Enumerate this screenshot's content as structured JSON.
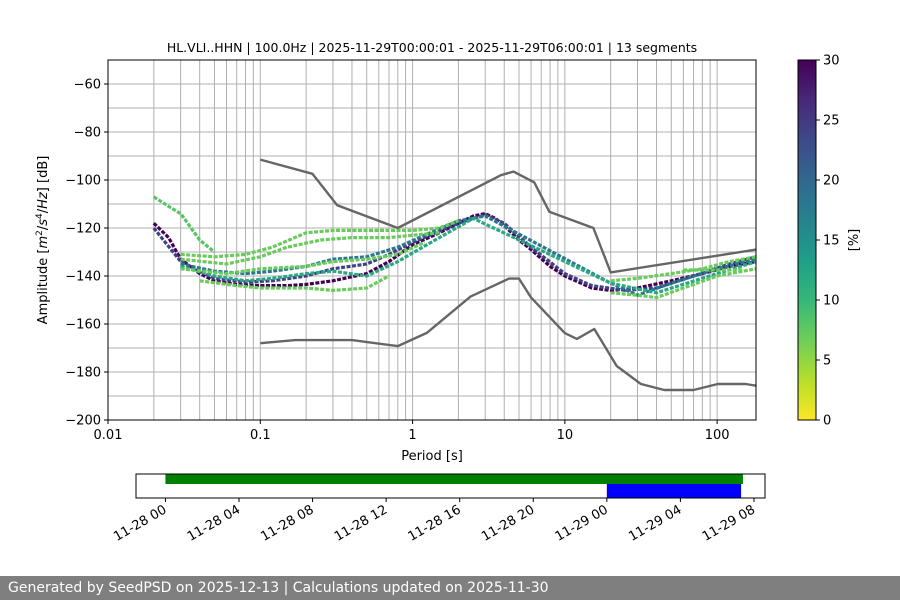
{
  "chart_data": [
    {
      "type": "heatmap",
      "title": "HL.VLI..HHN | 100.0Hz | 2025-11-29T00:00:01 - 2025-11-29T06:00:01 | 13 segments",
      "xlabel": "Period [s]",
      "ylabel_parts": [
        "Amplitude [",
        "m",
        "2",
        "/",
        "s",
        "4",
        "/",
        "Hz",
        "] [dB]"
      ],
      "xscale": "log",
      "xlim": [
        0.01,
        180
      ],
      "ylim": [
        -200,
        -50
      ],
      "xticks": [
        0.01,
        0.1,
        1,
        10,
        100
      ],
      "xtick_labels": [
        "0.01",
        "0.1",
        "1",
        "10",
        "100"
      ],
      "yticks": [
        -200,
        -180,
        -160,
        -140,
        -120,
        -100,
        -80,
        -60
      ],
      "ytick_labels": [
        "−200",
        "−180",
        "−160",
        "−140",
        "−120",
        "−100",
        "−80",
        "−60"
      ],
      "grid": true,
      "colorbar": {
        "label": "[%]",
        "range": [
          0,
          30
        ],
        "ticks": [
          0,
          5,
          10,
          15,
          20,
          25,
          30
        ],
        "tick_labels": [
          "0",
          "5",
          "10",
          "15",
          "20",
          "25",
          "30"
        ],
        "colormap": "viridis_r",
        "colors": [
          "#fde725",
          "#b5de2b",
          "#6ece58",
          "#35b779",
          "#1f9e89",
          "#26828e",
          "#31688e",
          "#3e4989",
          "#482878",
          "#440154"
        ]
      },
      "noise_model_color": "#666666",
      "high_noise_model": [
        [
          0.1,
          -91.5
        ],
        [
          0.22,
          -97.4
        ],
        [
          0.32,
          -110.5
        ],
        [
          0.8,
          -120
        ],
        [
          3.8,
          -98
        ],
        [
          4.6,
          -96.5
        ],
        [
          6.3,
          -101
        ],
        [
          7.9,
          -113.2
        ],
        [
          15.4,
          -120
        ],
        [
          20,
          -138.5
        ],
        [
          180,
          -129
        ]
      ],
      "low_noise_model": [
        [
          0.1,
          -168
        ],
        [
          0.17,
          -166.7
        ],
        [
          0.4,
          -166.7
        ],
        [
          0.8,
          -169.2
        ],
        [
          1.24,
          -163.7
        ],
        [
          2.4,
          -148.6
        ],
        [
          4.3,
          -141.1
        ],
        [
          5.0,
          -141.1
        ],
        [
          6.0,
          -149
        ],
        [
          10,
          -163.8
        ],
        [
          12,
          -166.2
        ],
        [
          15.6,
          -162.1
        ],
        [
          21.9,
          -177.5
        ],
        [
          31.6,
          -185
        ],
        [
          45,
          -187.5
        ],
        [
          70,
          -187.5
        ],
        [
          101,
          -185
        ],
        [
          154,
          -185
        ],
        [
          180,
          -185.7
        ]
      ],
      "psd_curves": [
        {
          "level": 30,
          "points": [
            [
              0.02,
              -118
            ],
            [
              0.025,
              -124
            ],
            [
              0.03,
              -133
            ],
            [
              0.04,
              -139
            ],
            [
              0.05,
              -142
            ],
            [
              0.07,
              -143.5
            ],
            [
              0.1,
              -144
            ],
            [
              0.15,
              -144
            ],
            [
              0.2,
              -143.5
            ],
            [
              0.3,
              -142
            ],
            [
              0.5,
              -139
            ],
            [
              0.7,
              -134
            ],
            [
              1,
              -127
            ],
            [
              1.5,
              -122
            ],
            [
              2,
              -118
            ],
            [
              2.5,
              -115
            ],
            [
              3,
              -114
            ],
            [
              3.5,
              -116
            ],
            [
              4,
              -119
            ],
            [
              5,
              -125
            ],
            [
              6,
              -129
            ],
            [
              8,
              -136
            ],
            [
              10,
              -140
            ],
            [
              15,
              -145
            ],
            [
              20,
              -146
            ],
            [
              30,
              -145
            ],
            [
              50,
              -142
            ],
            [
              80,
              -139
            ],
            [
              120,
              -136
            ],
            [
              180,
              -134
            ]
          ]
        },
        {
          "level": 24,
          "points": [
            [
              0.02,
              -120
            ],
            [
              0.03,
              -134
            ],
            [
              0.05,
              -141
            ],
            [
              0.08,
              -142.5
            ],
            [
              0.12,
              -142
            ],
            [
              0.2,
              -140
            ],
            [
              0.3,
              -137
            ],
            [
              0.5,
              -135
            ],
            [
              0.7,
              -131
            ],
            [
              1,
              -126
            ],
            [
              2,
              -118
            ],
            [
              3,
              -114.5
            ],
            [
              4,
              -118
            ],
            [
              6,
              -128
            ],
            [
              10,
              -139
            ],
            [
              15,
              -144
            ],
            [
              25,
              -146
            ],
            [
              40,
              -145
            ],
            [
              70,
              -140
            ],
            [
              120,
              -135
            ],
            [
              180,
              -132
            ]
          ]
        },
        {
          "level": 18,
          "points": [
            [
              0.03,
              -135
            ],
            [
              0.05,
              -138
            ],
            [
              0.08,
              -139
            ],
            [
              0.12,
              -138
            ],
            [
              0.2,
              -136
            ],
            [
              0.3,
              -133
            ],
            [
              0.5,
              -132
            ],
            [
              0.8,
              -128
            ],
            [
              1.2,
              -123
            ],
            [
              2,
              -117
            ],
            [
              3,
              -115
            ],
            [
              20,
              -143
            ],
            [
              30,
              -148
            ],
            [
              50,
              -143
            ],
            [
              100,
              -137
            ],
            [
              180,
              -133
            ]
          ]
        },
        {
          "level": 12,
          "points": [
            [
              0.03,
              -136
            ],
            [
              0.05,
              -140
            ],
            [
              0.08,
              -142
            ],
            [
              0.12,
              -141
            ],
            [
              0.2,
              -139
            ],
            [
              0.3,
              -138
            ],
            [
              0.5,
              -140
            ],
            [
              0.8,
              -134
            ],
            [
              1.5,
              -124
            ],
            [
              2.5,
              -116
            ],
            [
              20,
              -143
            ],
            [
              40,
              -147
            ],
            [
              100,
              -139
            ],
            [
              180,
              -134
            ]
          ]
        },
        {
          "level": 8,
          "points": [
            [
              0.02,
              -107
            ],
            [
              0.025,
              -111
            ],
            [
              0.03,
              -114
            ],
            [
              0.04,
              -125
            ],
            [
              0.05,
              -130
            ]
          ]
        },
        {
          "level": 7,
          "points": [
            [
              0.03,
              -131
            ],
            [
              0.05,
              -132
            ],
            [
              0.08,
              -131
            ],
            [
              0.12,
              -128
            ],
            [
              0.2,
              -122
            ],
            [
              0.3,
              -121
            ],
            [
              0.5,
              -121
            ],
            [
              1,
              -121
            ],
            [
              1.5,
              -120
            ],
            [
              2,
              -117
            ]
          ]
        },
        {
          "level": 7,
          "points": [
            [
              0.03,
              -133
            ],
            [
              0.06,
              -135
            ],
            [
              0.1,
              -132
            ],
            [
              0.15,
              -128
            ],
            [
              0.25,
              -125
            ],
            [
              0.4,
              -124
            ],
            [
              0.7,
              -124
            ],
            [
              1,
              -123
            ],
            [
              1.5,
              -122
            ]
          ]
        },
        {
          "level": 7,
          "points": [
            [
              0.03,
              -137
            ],
            [
              0.06,
              -139
            ],
            [
              0.1,
              -137
            ],
            [
              0.2,
              -136
            ],
            [
              0.3,
              -134
            ],
            [
              0.5,
              -133
            ],
            [
              0.8,
              -131
            ],
            [
              1.2,
              -126
            ]
          ]
        },
        {
          "level": 7,
          "points": [
            [
              0.04,
              -142
            ],
            [
              0.07,
              -144
            ],
            [
              0.1,
              -145
            ],
            [
              0.2,
              -145
            ],
            [
              0.3,
              -146
            ],
            [
              0.5,
              -145
            ],
            [
              0.7,
              -140
            ]
          ]
        },
        {
          "level": 7,
          "points": [
            [
              20,
              -142
            ],
            [
              30,
              -141
            ],
            [
              50,
              -139
            ],
            [
              80,
              -137
            ],
            [
              120,
              -134
            ],
            [
              180,
              -132
            ]
          ]
        },
        {
          "level": 7,
          "points": [
            [
              20,
              -147
            ],
            [
              30,
              -148
            ],
            [
              40,
              -149
            ],
            [
              60,
              -145
            ],
            [
              100,
              -140
            ],
            [
              180,
              -137
            ]
          ]
        },
        {
          "level": 7,
          "points": [
            [
              60,
              -137.5
            ],
            [
              100,
              -137.5
            ],
            [
              150,
              -137.5
            ]
          ]
        }
      ]
    },
    {
      "type": "timeline",
      "x_tick_labels": [
        "11-28 00",
        "11-28 04",
        "11-28 08",
        "11-28 12",
        "11-28 16",
        "11-28 20",
        "11-29 00",
        "11-29 04",
        "11-29 08"
      ],
      "x_ticks_hours": [
        0,
        4,
        8,
        12,
        16,
        20,
        24,
        28,
        32
      ],
      "xlim_hours": [
        -1.6,
        32.6
      ],
      "available_data": {
        "start_hour": 0,
        "end_hour": 31.4,
        "color": "#008000"
      },
      "processed_data": {
        "start_hour": 24,
        "end_hour": 31.3,
        "color": "#0000ff"
      }
    }
  ],
  "footer": "Generated by SeedPSD on 2025-12-13 | Calculations updated on 2025-11-30"
}
